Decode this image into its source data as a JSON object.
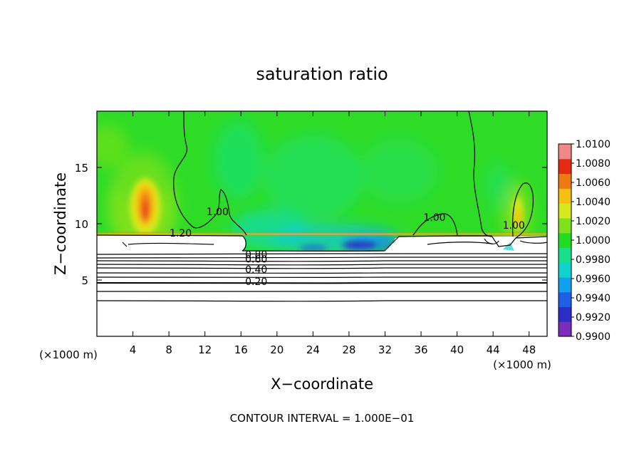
{
  "chart_data": {
    "type": "heatmap",
    "title": "saturation ratio",
    "xlabel": "X−coordinate",
    "ylabel": "Z−coordinate",
    "x_units": "(×1000 m)",
    "z_units": "(×1000 m)",
    "xlim": [
      0,
      50
    ],
    "ylim": [
      0,
      20
    ],
    "x_ticks": [
      4,
      8,
      12,
      16,
      20,
      24,
      28,
      32,
      36,
      40,
      44,
      48
    ],
    "y_ticks": [
      5,
      10,
      15
    ],
    "grid": false,
    "colorbar": {
      "min": 0.99,
      "max": 1.01,
      "ticks": [
        "1.0100",
        "1.0080",
        "1.0060",
        "1.0040",
        "1.0020",
        "1.0000",
        "0.9980",
        "0.9960",
        "0.9940",
        "0.9920",
        "0.9900"
      ],
      "colors": [
        "#7a2db8",
        "#2d2dc8",
        "#1e5fe6",
        "#12a0f0",
        "#10d2d0",
        "#16e08a",
        "#22dc22",
        "#7ee21a",
        "#d8e81e",
        "#f7c010",
        "#f07a12",
        "#e52a14",
        "#f08888"
      ]
    },
    "contours": {
      "interval": 0.1,
      "labels": [
        {
          "value": "1.20",
          "x": 9.3,
          "z": 9.1
        },
        {
          "value": "1.00",
          "x": 13.4,
          "z": 11.0
        },
        {
          "value": "1.00",
          "x": 37.5,
          "z": 10.5
        },
        {
          "value": "1.00",
          "x": 46.3,
          "z": 9.8
        },
        {
          "value": "0.80",
          "x": 17.7,
          "z": 7.2
        },
        {
          "value": "0.60",
          "x": 17.7,
          "z": 6.8
        },
        {
          "value": "0.40",
          "x": 17.7,
          "z": 5.9
        },
        {
          "value": "0.20",
          "x": 17.7,
          "z": 4.8
        }
      ]
    },
    "footer": "CONTOUR INTERVAL = 1.000E−01"
  }
}
